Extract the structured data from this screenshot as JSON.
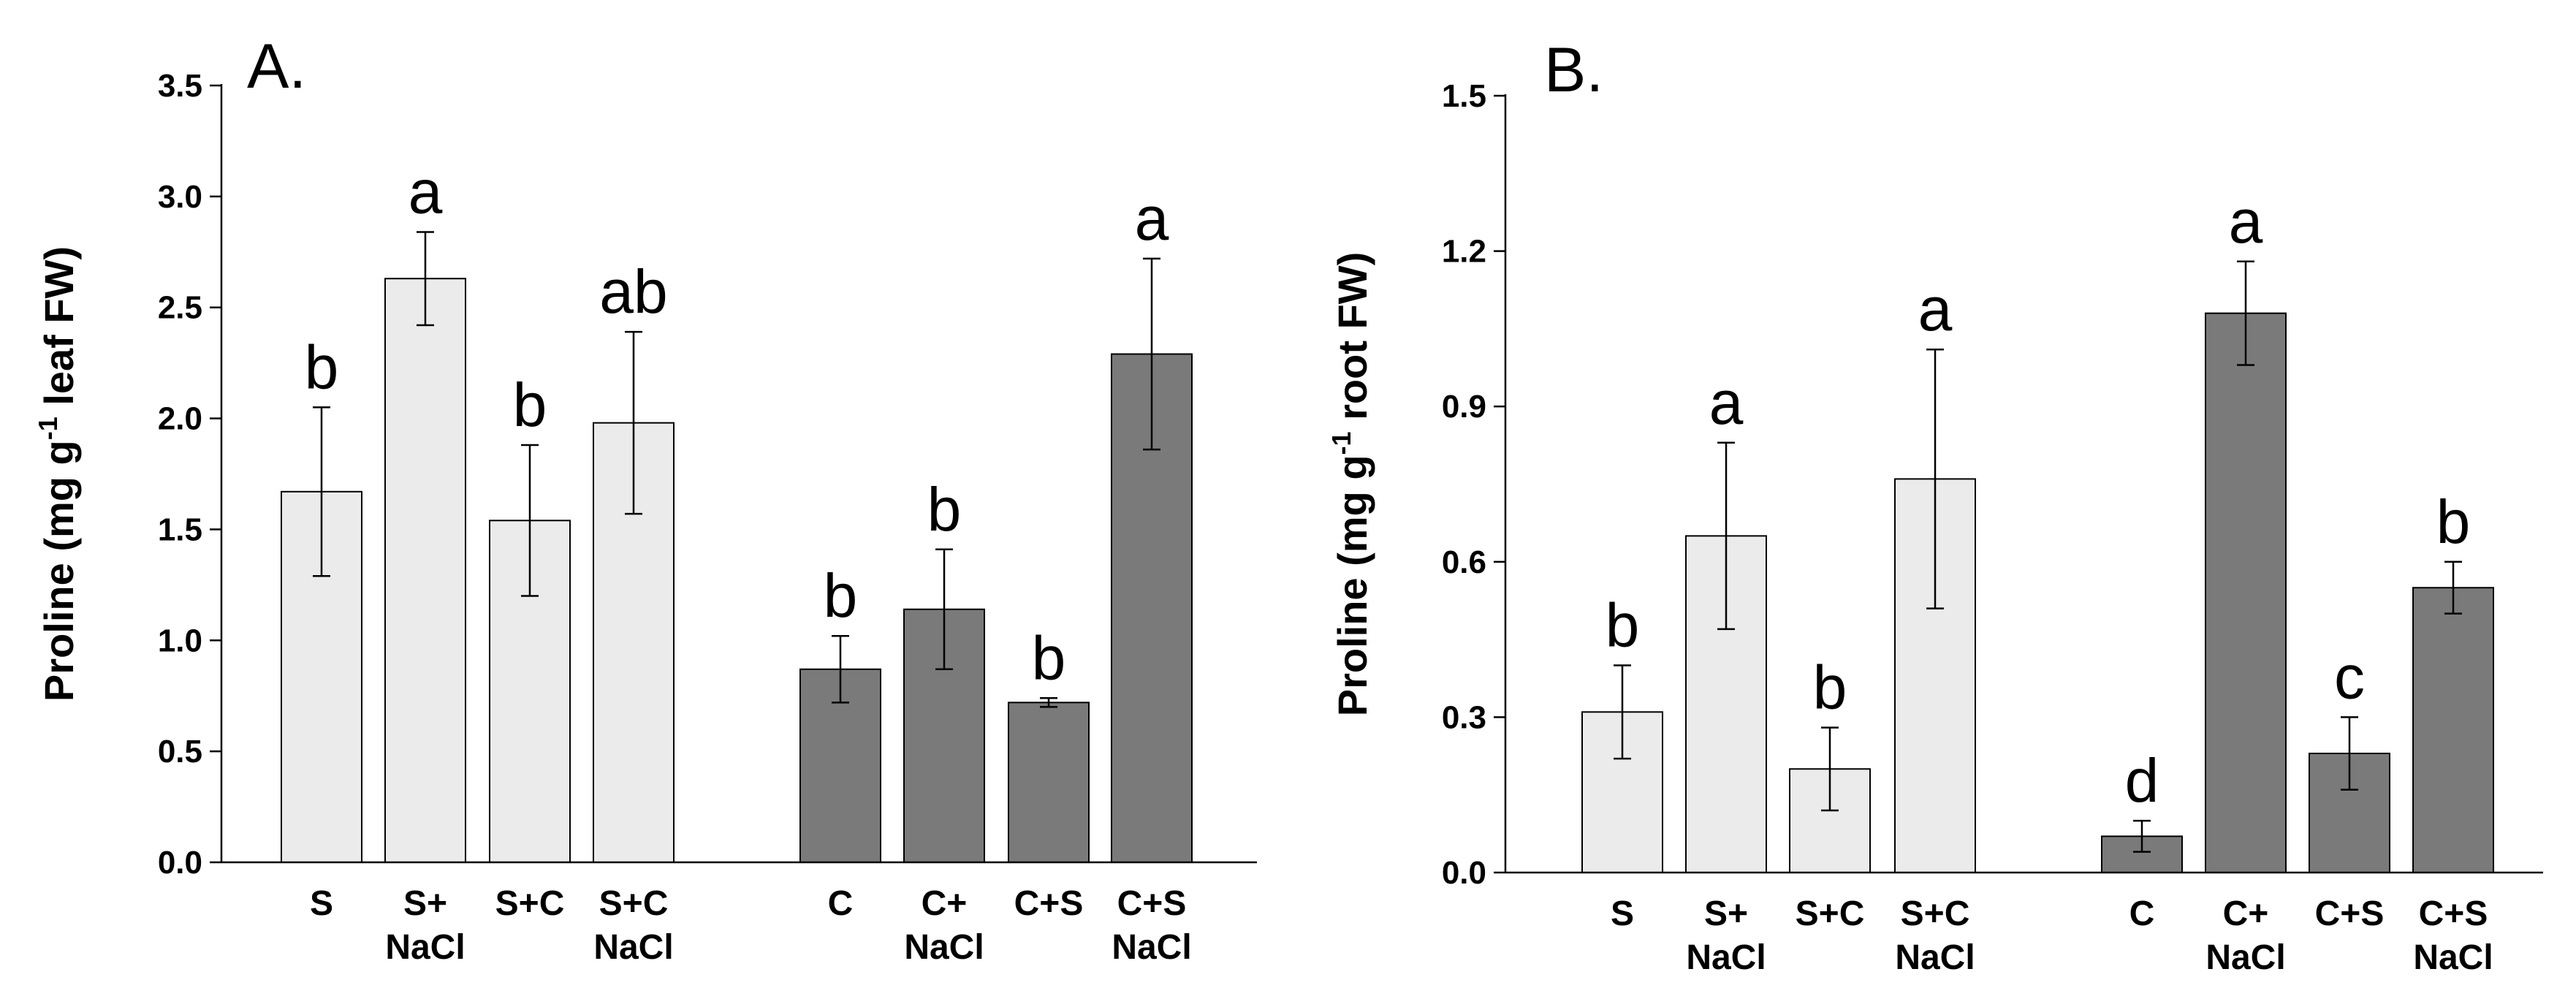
{
  "chart_data": [
    {
      "type": "bar",
      "panel_label": "A.",
      "ylabel_main": "Proline (mg g",
      "ylabel_sup": "-1",
      "ylabel_tail": " leaf FW)",
      "ylim": [
        0,
        3.5
      ],
      "yticks": [
        "0.0",
        "0.5",
        "1.0",
        "1.5",
        "2.0",
        "2.5",
        "3.0",
        "3.5"
      ],
      "series_colors": {
        "light": "#ebebeb",
        "dark": "#7a7a7a"
      },
      "bars": [
        {
          "label_lines": [
            "S"
          ],
          "value": 1.67,
          "error": 0.38,
          "letter": "b",
          "group": "light"
        },
        {
          "label_lines": [
            "S+",
            "NaCl"
          ],
          "value": 2.63,
          "error": 0.21,
          "letter": "a",
          "group": "light"
        },
        {
          "label_lines": [
            "S+C"
          ],
          "value": 1.54,
          "error": 0.34,
          "letter": "b",
          "group": "light"
        },
        {
          "label_lines": [
            "S+C",
            "NaCl"
          ],
          "value": 1.98,
          "error": 0.41,
          "letter": "ab",
          "group": "light"
        },
        {
          "label_lines": [
            "C"
          ],
          "value": 0.87,
          "error": 0.15,
          "letter": "b",
          "group": "dark"
        },
        {
          "label_lines": [
            "C+",
            "NaCl"
          ],
          "value": 1.14,
          "error": 0.27,
          "letter": "b",
          "group": "dark"
        },
        {
          "label_lines": [
            "C+S"
          ],
          "value": 0.72,
          "error": 0.02,
          "letter": "b",
          "group": "dark"
        },
        {
          "label_lines": [
            "C+S",
            "NaCl"
          ],
          "value": 2.29,
          "error": 0.43,
          "letter": "a",
          "group": "dark"
        }
      ]
    },
    {
      "type": "bar",
      "panel_label": "B.",
      "ylabel_main": "Proline (mg g",
      "ylabel_sup": "-1",
      "ylabel_tail": " root FW)",
      "ylim": [
        0,
        1.5
      ],
      "yticks": [
        "0.0",
        "0.3",
        "0.6",
        "0.9",
        "1.2",
        "1.5"
      ],
      "series_colors": {
        "light": "#ebebeb",
        "dark": "#7a7a7a"
      },
      "bars": [
        {
          "label_lines": [
            "S"
          ],
          "value": 0.31,
          "error": 0.09,
          "letter": "b",
          "group": "light"
        },
        {
          "label_lines": [
            "S+",
            "NaCl"
          ],
          "value": 0.65,
          "error": 0.18,
          "letter": "a",
          "group": "light"
        },
        {
          "label_lines": [
            "S+C"
          ],
          "value": 0.2,
          "error": 0.08,
          "letter": "b",
          "group": "light"
        },
        {
          "label_lines": [
            "S+C",
            "NaCl"
          ],
          "value": 0.76,
          "error": 0.25,
          "letter": "a",
          "group": "light"
        },
        {
          "label_lines": [
            "C"
          ],
          "value": 0.07,
          "error": 0.03,
          "letter": "d",
          "group": "dark"
        },
        {
          "label_lines": [
            "C+",
            "NaCl"
          ],
          "value": 1.08,
          "error": 0.1,
          "letter": "a",
          "group": "dark"
        },
        {
          "label_lines": [
            "C+S"
          ],
          "value": 0.23,
          "error": 0.07,
          "letter": "c",
          "group": "dark"
        },
        {
          "label_lines": [
            "C+S",
            "NaCl"
          ],
          "value": 0.55,
          "error": 0.05,
          "letter": "b",
          "group": "dark"
        }
      ]
    }
  ]
}
